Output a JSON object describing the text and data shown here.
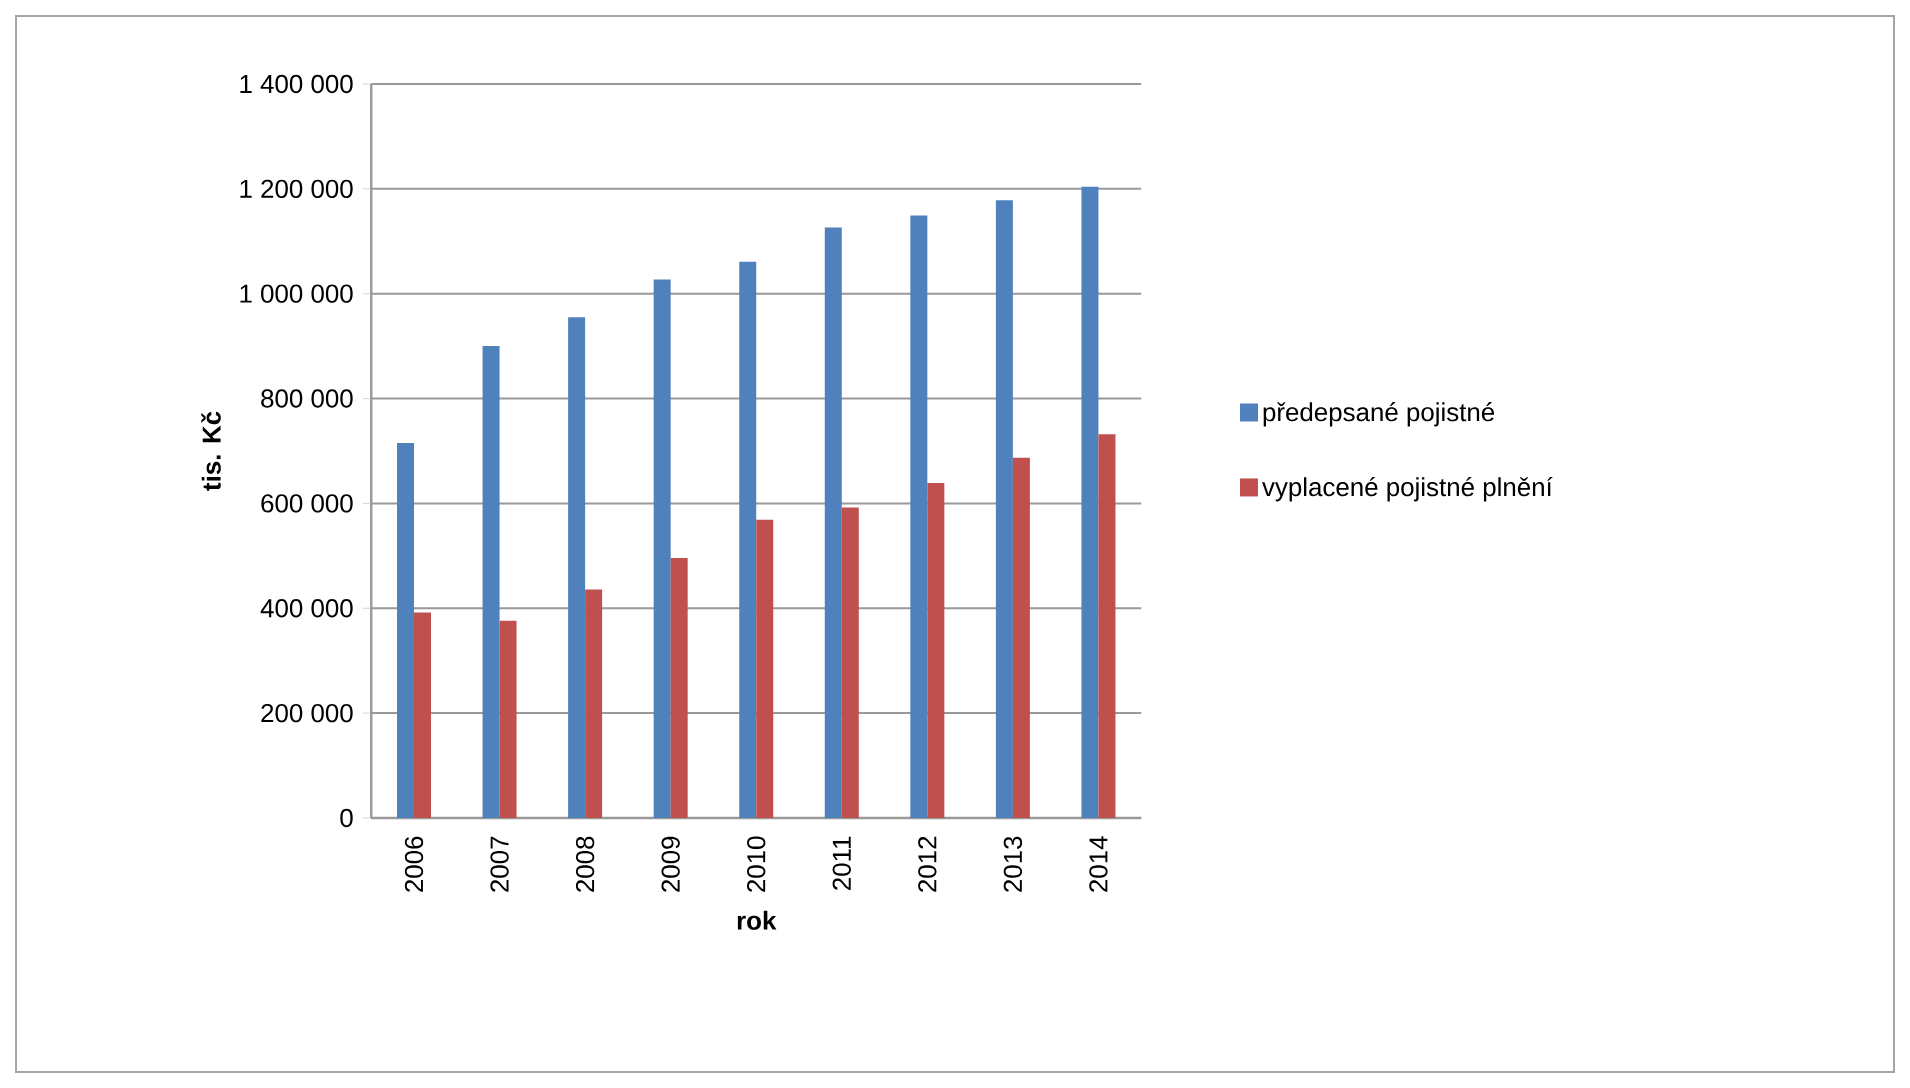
{
  "chart_data": {
    "type": "bar",
    "xlabel": "rok",
    "ylabel": "tis. Kč",
    "categories": [
      "2006",
      "2007",
      "2008",
      "2009",
      "2010",
      "2011",
      "2012",
      "2013",
      "2014"
    ],
    "series": [
      {
        "name": "předepsané pojistné",
        "color": "#4f81bd",
        "values": [
          715000,
          900000,
          955000,
          1027000,
          1061000,
          1126000,
          1149000,
          1178000,
          1204000
        ]
      },
      {
        "name": "vyplacené pojistné plnění",
        "color": "#c0504d",
        "values": [
          392000,
          376000,
          436000,
          496000,
          569000,
          592000,
          639000,
          687000,
          732000
        ]
      }
    ],
    "ylim": [
      0,
      1400000
    ],
    "yticks": [
      0,
      {
        "value": 200000,
        "label": "200 000"
      },
      {
        "value": 400000,
        "label": "400 000"
      },
      {
        "value": 600000,
        "label": "600 000"
      },
      {
        "value": 800000,
        "label": "800 000"
      },
      {
        "value": 1000000,
        "label": "1 000 000"
      },
      {
        "value": 1200000,
        "label": "1 200 000"
      },
      {
        "value": 1400000,
        "label": "1 400 000"
      }
    ],
    "grid": "y",
    "legend": "right"
  }
}
